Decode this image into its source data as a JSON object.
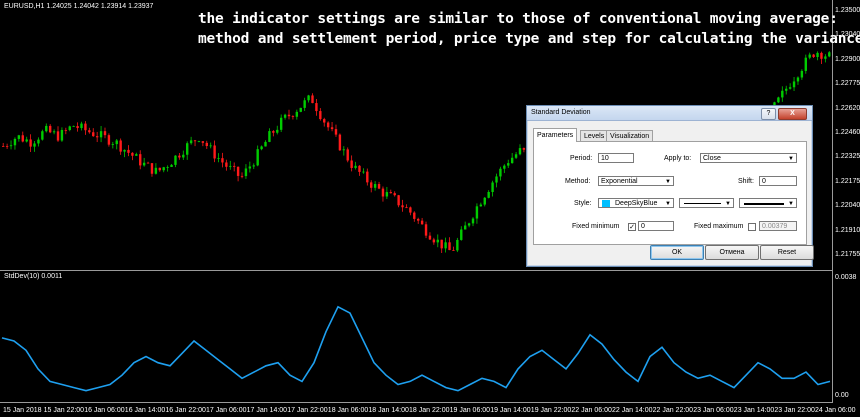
{
  "chart": {
    "title": "EURUSD,H1  1.24025 1.24042 1.23914 1.23937",
    "indicator_label": "StdDev(10) 0.0011",
    "up_color": "#00cc00",
    "down_color": "#ff1a1a",
    "indicator_color": "#1ea0f0",
    "price_labels": [
      "1.23500",
      "1.23040",
      "1.22900",
      "1.22775",
      "1.22620",
      "1.22460",
      "1.22325",
      "1.22175",
      "1.22040",
      "1.21910",
      "1.21755"
    ],
    "indicator_labels": [
      "0.0038",
      "0.00"
    ],
    "time_labels": [
      "15 Jan 2018",
      "15 Jan 22:00",
      "16 Jan 06:00",
      "16 Jan 14:00",
      "16 Jan 22:00",
      "17 Jan 06:00",
      "17 Jan 14:00",
      "17 Jan 22:00",
      "18 Jan 06:00",
      "18 Jan 14:00",
      "18 Jan 22:00",
      "19 Jan 06:00",
      "19 Jan 14:00",
      "19 Jan 22:00",
      "22 Jan 06:00",
      "22 Jan 14:00",
      "22 Jan 22:00",
      "23 Jan 06:00",
      "23 Jan 14:00",
      "23 Jan 22:00",
      "24 Jan 06:00"
    ]
  },
  "chart_data": {
    "type": "line",
    "price_series": [
      1.2255,
      1.2262,
      1.2258,
      1.2266,
      1.2262,
      1.227,
      1.2266,
      1.2262,
      1.2258,
      1.225,
      1.2242,
      1.2236,
      1.2244,
      1.2254,
      1.2262,
      1.225,
      1.224,
      1.2232,
      1.2246,
      1.2262,
      1.2274,
      1.2282,
      1.229,
      1.2272,
      1.2256,
      1.224,
      1.223,
      1.2222,
      1.2216,
      1.2208,
      1.2196,
      1.2186,
      1.2178,
      1.2196,
      1.2214,
      1.223,
      1.2244,
      1.2252,
      1.2244,
      1.2236,
      1.224,
      1.2248,
      1.2238,
      1.2244,
      1.2256,
      1.2262,
      1.227,
      1.2274,
      1.2262,
      1.2248,
      1.2236,
      1.2236,
      1.2248,
      1.2262,
      1.2274,
      1.2282,
      1.2298,
      1.2312,
      1.2324,
      1.232
    ],
    "stddev_series": [
      0.002,
      0.0019,
      0.0016,
      0.001,
      0.0006,
      0.0005,
      0.0004,
      0.0003,
      0.0004,
      0.0005,
      0.0008,
      0.0012,
      0.0014,
      0.0012,
      0.0011,
      0.0015,
      0.0019,
      0.0016,
      0.0013,
      0.001,
      0.0007,
      0.0009,
      0.0011,
      0.0012,
      0.0008,
      0.0006,
      0.0012,
      0.0022,
      0.003,
      0.0028,
      0.002,
      0.0012,
      0.0008,
      0.0005,
      0.0006,
      0.0008,
      0.0006,
      0.0004,
      0.0003,
      0.0005,
      0.0007,
      0.0006,
      0.0004,
      0.001,
      0.0014,
      0.0016,
      0.0013,
      0.001,
      0.0015,
      0.0021,
      0.0018,
      0.0013,
      0.0009,
      0.0006,
      0.0014,
      0.0017,
      0.0012,
      0.0009,
      0.0007,
      0.0008,
      0.0006,
      0.0004,
      0.0008,
      0.0012,
      0.001,
      0.0007,
      0.0007,
      0.0009,
      0.0005,
      0.0006
    ],
    "price_range": [
      1.2168,
      1.2358
    ],
    "stddev_range": [
      0.0,
      0.0038
    ]
  },
  "caption": {
    "line1": "the indicator settings are similar to those of conventional moving average:",
    "line2": "method and settlement period, price type and step for calculating the variance"
  },
  "dialog": {
    "title": "Standard Deviation",
    "help": "?",
    "minimize": "_",
    "close": "X",
    "tabs": [
      "Parameters",
      "Levels",
      "Visualization"
    ],
    "period_label": "Period:",
    "period_value": "10",
    "apply_label": "Apply to:",
    "apply_value": "Close",
    "method_label": "Method:",
    "method_value": "Exponential",
    "shift_label": "Shift:",
    "shift_value": "0",
    "style_label": "Style:",
    "style_color_name": "DeepSkyBlue",
    "style_color": "#00bfff",
    "fixmin_label": "Fixed minimum",
    "fixmin_value": "0",
    "fixmax_label": "Fixed maximum",
    "fixmax_value": "0.00379",
    "ok": "OK",
    "cancel": "Отмена",
    "reset": "Reset"
  }
}
